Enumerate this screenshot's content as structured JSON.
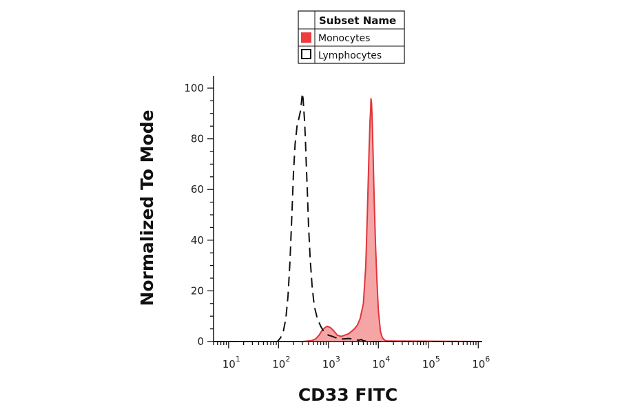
{
  "chart_data": {
    "type": "area",
    "xlabel": "CD33 FITC",
    "ylabel": "Normalized To Mode",
    "x_scale": "log",
    "xlim": [
      5,
      1200000
    ],
    "ylim": [
      0,
      105
    ],
    "x_ticks": [
      {
        "base": "10",
        "exp": "1",
        "value": 10
      },
      {
        "base": "10",
        "exp": "2",
        "value": 100
      },
      {
        "base": "10",
        "exp": "3",
        "value": 1000
      },
      {
        "base": "10",
        "exp": "4",
        "value": 10000
      },
      {
        "base": "10",
        "exp": "5",
        "value": 100000
      },
      {
        "base": "10",
        "exp": "6",
        "value": 1000000
      }
    ],
    "y_ticks": [
      "0",
      "20",
      "40",
      "60",
      "80",
      "100"
    ],
    "legend": {
      "header": "Subset Name",
      "placement": "top-center"
    },
    "series": [
      {
        "name": "Monocytes",
        "style": "filled",
        "stroke": "#e0353a",
        "fill": "#f6a5a6",
        "swatch": "#ee3b3b",
        "x": [
          5,
          300,
          450,
          550,
          650,
          750,
          850,
          950,
          1100,
          1300,
          1500,
          1800,
          2100,
          2500,
          2900,
          3300,
          3800,
          4300,
          5000,
          5600,
          6100,
          6500,
          6800,
          7000,
          7100,
          7300,
          7500,
          7800,
          8200,
          8700,
          9300,
          10000,
          11000,
          12000,
          13500,
          15000,
          1200000
        ],
        "y": [
          0,
          0,
          0.3,
          1,
          2.5,
          4.5,
          5.5,
          6,
          5.5,
          4,
          2.5,
          2,
          2.5,
          3,
          4,
          5,
          6.5,
          9,
          15,
          30,
          55,
          75,
          87,
          92,
          96,
          94,
          88,
          75,
          58,
          40,
          25,
          12,
          4,
          1.5,
          0.5,
          0.2,
          0
        ]
      },
      {
        "name": "Lymphocytes",
        "style": "dashed",
        "stroke": "#111111",
        "fill": "none",
        "swatch": "#ffffff",
        "x": [
          5,
          95,
          110,
          125,
          140,
          155,
          170,
          185,
          200,
          215,
          235,
          255,
          275,
          290,
          300,
          310,
          320,
          330,
          345,
          360,
          380,
          400,
          430,
          470,
          520,
          600,
          700,
          800,
          900,
          1000,
          1200,
          1400,
          1600,
          2000,
          2500,
          3000,
          3500,
          4000,
          4500,
          5000,
          5500,
          6000,
          1200000
        ],
        "y": [
          0,
          0,
          1.5,
          4,
          9,
          18,
          32,
          50,
          67,
          78,
          85,
          88,
          91,
          95,
          98,
          96,
          92,
          88,
          80,
          70,
          58,
          45,
          33,
          22,
          14,
          9,
          6,
          4,
          3,
          2.5,
          2,
          1.5,
          1,
          1,
          1.2,
          1,
          0.8,
          0.5,
          0.8,
          0.3,
          0.2,
          0,
          0
        ]
      }
    ]
  }
}
